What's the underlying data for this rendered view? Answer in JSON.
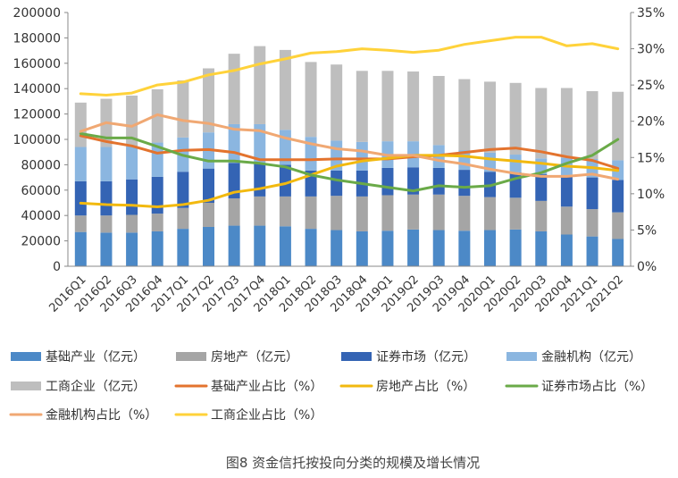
{
  "caption": "图8  资金信托按投向分类的规模及增长情况",
  "chart_data": {
    "type": "bar",
    "categories": [
      "2016Q1",
      "2016Q2",
      "2016Q3",
      "2016Q4",
      "2017Q1",
      "2017Q2",
      "2017Q3",
      "2017Q4",
      "2018Q1",
      "2018Q2",
      "2018Q3",
      "2018Q4",
      "2019Q1",
      "2019Q2",
      "2019Q3",
      "2019Q4",
      "2020Q1",
      "2020Q2",
      "2020Q3",
      "2020Q4",
      "2021Q1",
      "2021Q2"
    ],
    "y_left": {
      "ticks": [
        0,
        20000,
        40000,
        60000,
        80000,
        100000,
        120000,
        140000,
        160000,
        180000,
        200000
      ],
      "min": 0,
      "max": 200000
    },
    "y_right": {
      "ticks": [
        "0%",
        "5%",
        "10%",
        "15%",
        "20%",
        "25%",
        "30%",
        "35%"
      ],
      "min": 0,
      "max": 35
    },
    "bar_series": [
      {
        "name": "基础产业（亿元）",
        "color": "#4c89c7",
        "values": [
          27000,
          26500,
          26500,
          27500,
          29500,
          31000,
          32000,
          32000,
          31500,
          29500,
          28500,
          27500,
          28000,
          29000,
          28500,
          28000,
          28500,
          29000,
          27500,
          25000,
          23500,
          21500
        ]
      },
      {
        "name": "房地产（亿元）",
        "color": "#a5a5a5",
        "values": [
          13000,
          13500,
          14000,
          14000,
          16500,
          19000,
          21500,
          23000,
          23500,
          25500,
          27000,
          27500,
          28000,
          27500,
          28000,
          27500,
          26000,
          25000,
          24000,
          22000,
          21500,
          21000
        ]
      },
      {
        "name": "证券市场（亿元）",
        "color": "#3464b4",
        "values": [
          27000,
          27000,
          28000,
          29000,
          28500,
          27000,
          28000,
          26500,
          25000,
          20500,
          20000,
          20500,
          21500,
          21500,
          21000,
          20500,
          20000,
          20000,
          21000,
          24500,
          25000,
          25500
        ]
      },
      {
        "name": "金融机构（亿元）",
        "color": "#8bb6e0",
        "values": [
          27000,
          27000,
          26000,
          27000,
          27000,
          28500,
          30500,
          30500,
          27500,
          26500,
          23500,
          22500,
          21000,
          20500,
          18000,
          15500,
          15000,
          14000,
          12500,
          14000,
          14500,
          15500
        ]
      },
      {
        "name": "工商企业（亿元）",
        "color": "#bebebe",
        "values": [
          35000,
          38000,
          40000,
          42000,
          45000,
          50500,
          55500,
          61500,
          63000,
          59000,
          60000,
          56000,
          55500,
          55000,
          54500,
          56000,
          56000,
          56500,
          55500,
          55000,
          53500,
          54000
        ]
      }
    ],
    "line_series": [
      {
        "name": "基础产业占比（%）",
        "color": "#e3732e",
        "values": [
          18.0,
          17.2,
          16.6,
          15.6,
          16.0,
          16.1,
          15.7,
          14.7,
          14.7,
          14.7,
          14.8,
          14.8,
          14.8,
          15.1,
          15.3,
          15.7,
          16.1,
          16.3,
          15.8,
          15.1,
          14.6,
          13.5
        ]
      },
      {
        "name": "房地产占比（%）",
        "color": "#f2b90f",
        "values": [
          8.7,
          8.5,
          8.4,
          8.2,
          8.5,
          9.1,
          10.2,
          10.7,
          11.4,
          12.6,
          13.8,
          14.5,
          14.9,
          15.3,
          15.3,
          15.2,
          14.8,
          14.5,
          14.2,
          13.8,
          13.6,
          13.2
        ]
      },
      {
        "name": "证券市场占比（%）",
        "color": "#6aaa48",
        "values": [
          18.3,
          17.7,
          17.7,
          16.5,
          15.3,
          14.5,
          14.5,
          14.2,
          13.7,
          12.6,
          11.9,
          11.4,
          10.9,
          10.4,
          11.1,
          10.9,
          11.1,
          12.1,
          12.9,
          14.2,
          15.3,
          17.5
        ]
      },
      {
        "name": "金融机构占比（%）",
        "color": "#f0a873",
        "values": [
          18.6,
          19.8,
          19.3,
          20.9,
          20.1,
          19.7,
          18.9,
          18.7,
          17.7,
          16.9,
          16.2,
          15.9,
          15.3,
          15.3,
          14.6,
          14.1,
          13.4,
          12.8,
          12.4,
          12.4,
          12.7,
          12.0
        ]
      },
      {
        "name": "工商企业占比（%）",
        "color": "#ffd23a",
        "values": [
          23.8,
          23.6,
          23.9,
          25.0,
          25.4,
          26.4,
          27.0,
          27.9,
          28.6,
          29.4,
          29.6,
          30.0,
          29.8,
          29.5,
          29.8,
          30.6,
          31.1,
          31.6,
          31.6,
          30.4,
          30.7,
          30.0
        ]
      }
    ],
    "legend": [
      {
        "label": "基础产业（亿元）",
        "kind": "bar",
        "color": "#4c89c7"
      },
      {
        "label": "房地产（亿元）",
        "kind": "bar",
        "color": "#a5a5a5"
      },
      {
        "label": "证券市场（亿元）",
        "kind": "bar",
        "color": "#3464b4"
      },
      {
        "label": "金融机构（亿元）",
        "kind": "bar",
        "color": "#8bb6e0"
      },
      {
        "label": "工商企业（亿元）",
        "kind": "bar",
        "color": "#bebebe"
      },
      {
        "label": "基础产业占比（%）",
        "kind": "line",
        "color": "#e3732e"
      },
      {
        "label": "房地产占比（%）",
        "kind": "line",
        "color": "#f2b90f"
      },
      {
        "label": "证券市场占比（%）",
        "kind": "line",
        "color": "#6aaa48"
      },
      {
        "label": "金融机构占比（%）",
        "kind": "line",
        "color": "#f0a873"
      },
      {
        "label": "工商企业占比（%）",
        "kind": "line",
        "color": "#ffd23a"
      }
    ],
    "legend_position": "bottom",
    "grid": false
  }
}
